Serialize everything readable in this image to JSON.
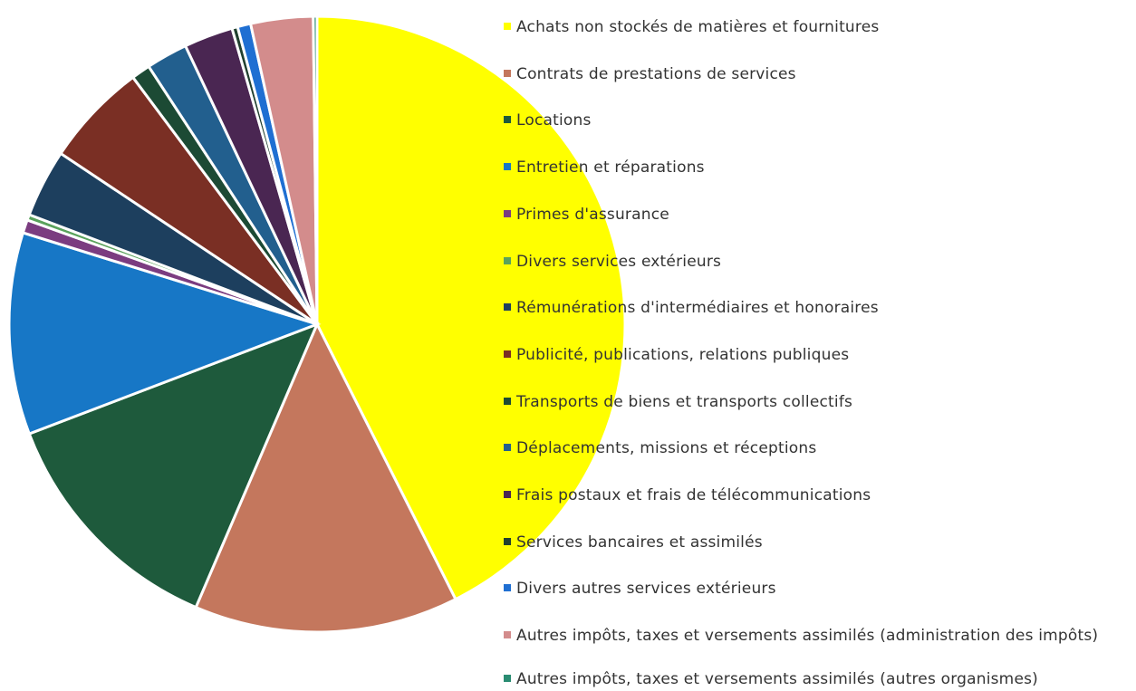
{
  "chart_data": {
    "type": "pie",
    "categories": [
      "Achats non stockés de matières et fournitures",
      "Contrats de prestations de services",
      "Locations",
      "Entretien et réparations",
      "Primes d'assurance",
      "Divers services extérieurs",
      "Rémunérations d'intermédiaires et honoraires",
      "Publicité, publications, relations publiques",
      "Transports de biens et transports collectifs",
      "Déplacements, missions et réceptions",
      "Frais postaux et frais de télécommunications",
      "Services bancaires et assimilés",
      "Divers autres services extérieurs",
      "Autres impôts, taxes et versements assimilés (administration des impôts)",
      "Autres impôts, taxes et versements assimilés (autres organismes)"
    ],
    "values": [
      43,
      14,
      12.9,
      10.7,
      0.7,
      0.3,
      3.6,
      5.5,
      1,
      2.2,
      2.6,
      0.3,
      0.7,
      3.3,
      0.2
    ],
    "colors": [
      "#ffff00",
      "#c4775d",
      "#1e5a3c",
      "#1777c6",
      "#7b3c80",
      "#5aa25c",
      "#1d3f5e",
      "#7a2f24",
      "#1c4a34",
      "#225f8e",
      "#4a2652",
      "#21402f",
      "#1f6fd2",
      "#d38c8c",
      "#2a8c72"
    ]
  }
}
